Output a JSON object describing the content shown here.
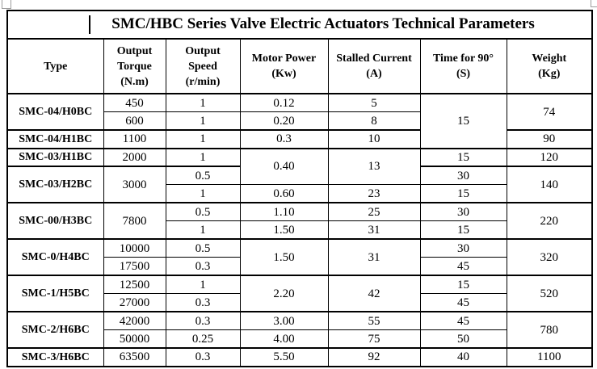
{
  "document": {
    "title": "SMC/HBC Series Valve Electric Actuators Technical Parameters"
  },
  "table": {
    "columns": [
      {
        "key": "type",
        "label": "Type"
      },
      {
        "key": "torque",
        "label": "Output\nTorque\n(N.m)"
      },
      {
        "key": "speed",
        "label": "Output\nSpeed\n(r/min)"
      },
      {
        "key": "power",
        "label": "Motor Power\n(Kw)"
      },
      {
        "key": "current",
        "label": "Stalled Current\n(A)"
      },
      {
        "key": "time",
        "label": "Time for 90°\n(S)"
      },
      {
        "key": "weight",
        "label": "Weight\n(Kg)"
      }
    ],
    "rows": [
      {
        "group_start": true,
        "cells": [
          {
            "col": "type",
            "text": "SMC-04/H0BC",
            "rowspan": 2
          },
          {
            "col": "torque",
            "text": "450"
          },
          {
            "col": "speed",
            "text": "1"
          },
          {
            "col": "power",
            "text": "0.12"
          },
          {
            "col": "current",
            "text": "5"
          },
          {
            "col": "time",
            "text": "15",
            "rowspan": 3
          },
          {
            "col": "weight",
            "text": "74",
            "rowspan": 2
          }
        ]
      },
      {
        "cells": [
          {
            "col": "torque",
            "text": "600"
          },
          {
            "col": "speed",
            "text": "1"
          },
          {
            "col": "power",
            "text": "0.20"
          },
          {
            "col": "current",
            "text": "8"
          }
        ]
      },
      {
        "group_start": true,
        "cells": [
          {
            "col": "type",
            "text": "SMC-04/H1BC"
          },
          {
            "col": "torque",
            "text": "1100"
          },
          {
            "col": "speed",
            "text": "1"
          },
          {
            "col": "power",
            "text": "0.3"
          },
          {
            "col": "current",
            "text": "10"
          },
          {
            "col": "weight",
            "text": "90"
          }
        ]
      },
      {
        "group_start": true,
        "cells": [
          {
            "col": "type",
            "text": "SMC-03/H1BC"
          },
          {
            "col": "torque",
            "text": "2000"
          },
          {
            "col": "speed",
            "text": "1"
          },
          {
            "col": "power",
            "text": "0.40",
            "rowspan": 2
          },
          {
            "col": "current",
            "text": "13",
            "rowspan": 2
          },
          {
            "col": "time",
            "text": "15"
          },
          {
            "col": "weight",
            "text": "120"
          }
        ]
      },
      {
        "group_start": true,
        "cells": [
          {
            "col": "type",
            "text": "SMC-03/H2BC",
            "rowspan": 2
          },
          {
            "col": "torque",
            "text": "3000",
            "rowspan": 2
          },
          {
            "col": "speed",
            "text": "0.5"
          },
          {
            "col": "time",
            "text": "30"
          },
          {
            "col": "weight",
            "text": "140",
            "rowspan": 2
          }
        ]
      },
      {
        "cells": [
          {
            "col": "speed",
            "text": "1"
          },
          {
            "col": "power",
            "text": "0.60"
          },
          {
            "col": "current",
            "text": "23"
          },
          {
            "col": "time",
            "text": "15"
          }
        ]
      },
      {
        "group_start": true,
        "cells": [
          {
            "col": "type",
            "text": "SMC-00/H3BC",
            "rowspan": 2
          },
          {
            "col": "torque",
            "text": "7800",
            "rowspan": 2
          },
          {
            "col": "speed",
            "text": "0.5"
          },
          {
            "col": "power",
            "text": "1.10"
          },
          {
            "col": "current",
            "text": "25"
          },
          {
            "col": "time",
            "text": "30"
          },
          {
            "col": "weight",
            "text": "220",
            "rowspan": 2
          }
        ]
      },
      {
        "cells": [
          {
            "col": "speed",
            "text": "1"
          },
          {
            "col": "power",
            "text": "1.50"
          },
          {
            "col": "current",
            "text": "31"
          },
          {
            "col": "time",
            "text": "15"
          }
        ]
      },
      {
        "group_start": true,
        "cells": [
          {
            "col": "type",
            "text": "SMC-0/H4BC",
            "rowspan": 2
          },
          {
            "col": "torque",
            "text": "10000"
          },
          {
            "col": "speed",
            "text": "0.5"
          },
          {
            "col": "power",
            "text": "1.50",
            "rowspan": 2
          },
          {
            "col": "current",
            "text": "31",
            "rowspan": 2
          },
          {
            "col": "time",
            "text": "30"
          },
          {
            "col": "weight",
            "text": "320",
            "rowspan": 2
          }
        ]
      },
      {
        "cells": [
          {
            "col": "torque",
            "text": "17500"
          },
          {
            "col": "speed",
            "text": "0.3"
          },
          {
            "col": "time",
            "text": "45"
          }
        ]
      },
      {
        "group_start": true,
        "cells": [
          {
            "col": "type",
            "text": "SMC-1/H5BC",
            "rowspan": 2
          },
          {
            "col": "torque",
            "text": "12500"
          },
          {
            "col": "speed",
            "text": "1"
          },
          {
            "col": "power",
            "text": "2.20",
            "rowspan": 2
          },
          {
            "col": "current",
            "text": "42",
            "rowspan": 2
          },
          {
            "col": "time",
            "text": "15"
          },
          {
            "col": "weight",
            "text": "520",
            "rowspan": 2
          }
        ]
      },
      {
        "cells": [
          {
            "col": "torque",
            "text": "27000"
          },
          {
            "col": "speed",
            "text": "0.3"
          },
          {
            "col": "time",
            "text": "45"
          }
        ]
      },
      {
        "group_start": true,
        "cells": [
          {
            "col": "type",
            "text": "SMC-2/H6BC",
            "rowspan": 2
          },
          {
            "col": "torque",
            "text": "42000"
          },
          {
            "col": "speed",
            "text": "0.3"
          },
          {
            "col": "power",
            "text": "3.00"
          },
          {
            "col": "current",
            "text": "55"
          },
          {
            "col": "time",
            "text": "45"
          },
          {
            "col": "weight",
            "text": "780",
            "rowspan": 2
          }
        ]
      },
      {
        "cells": [
          {
            "col": "torque",
            "text": "50000"
          },
          {
            "col": "speed",
            "text": "0.25"
          },
          {
            "col": "power",
            "text": "4.00"
          },
          {
            "col": "current",
            "text": "75"
          },
          {
            "col": "time",
            "text": "50"
          }
        ]
      },
      {
        "group_start": true,
        "cells": [
          {
            "col": "type",
            "text": "SMC-3/H6BC"
          },
          {
            "col": "torque",
            "text": "63500"
          },
          {
            "col": "speed",
            "text": "0.3"
          },
          {
            "col": "power",
            "text": "5.50"
          },
          {
            "col": "current",
            "text": "92"
          },
          {
            "col": "time",
            "text": "40"
          },
          {
            "col": "weight",
            "text": "1100"
          }
        ]
      }
    ]
  }
}
